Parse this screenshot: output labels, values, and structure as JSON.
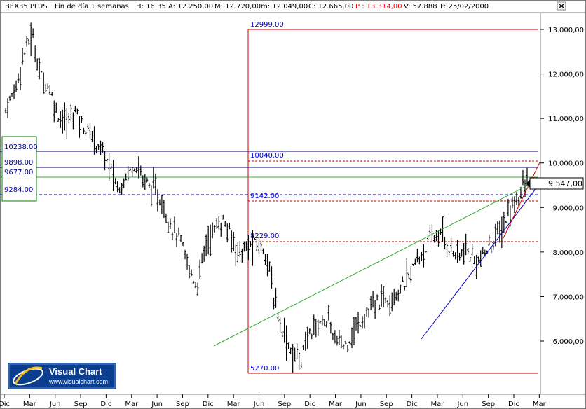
{
  "header": {
    "instrument": "IBEX35 PLUS",
    "period": "Fin de día 1 semanas",
    "time": "H: 16:35",
    "open": "A: 12.250,00",
    "high": "M: 12.720,00",
    "low": "m: 12.049,00",
    "close": "C: 12.665,00",
    "p": "P : 13.314,00",
    "volume": "V: 57.888",
    "date": "F: 25/02/2000",
    "colors": {
      "p_value": "#ff0000"
    }
  },
  "close_button_icon": "close-icon",
  "logo": {
    "name": "Visual Chart",
    "url": "www.visualchart.com"
  },
  "levels": {
    "left_box": [
      "10238.00",
      "9898.00",
      "9677.00",
      "9284.00"
    ],
    "fib_top": "12999.00",
    "fib_1": "10040.00",
    "fib_2": "9142.00",
    "fib_3": "8229.00",
    "fib_bottom": "5270.00"
  },
  "current_price": "9.547,00",
  "chart_data": {
    "type": "ohlc",
    "title": "IBEX35 PLUS",
    "y_ticks": [
      "13.000,00",
      "12.000,00",
      "11.000,00",
      "10.000,00",
      "9.000,00",
      "8.000,00",
      "7.000,00",
      "6.000,00"
    ],
    "y_tick_values": [
      13000,
      12000,
      11000,
      10000,
      9000,
      8000,
      7000,
      6000
    ],
    "ylim": [
      5000,
      13400
    ],
    "x_ticks": [
      "Dic",
      "Mar",
      "Jun",
      "Sep",
      "Dic",
      "Mar",
      "Jun",
      "Sep",
      "Dic",
      "Mar",
      "Jun",
      "Sep",
      "Dic",
      "Mar",
      "Jun",
      "Sep",
      "Dic",
      "Mar",
      "Jun",
      "Sep",
      "Dic",
      "Mar"
    ],
    "approx_closes": [
      11200,
      11600,
      12400,
      12900,
      12000,
      11700,
      11100,
      10900,
      11200,
      10800,
      10600,
      10300,
      9900,
      9400,
      9800,
      10000,
      9600,
      9400,
      9100,
      8600,
      8300,
      7700,
      7200,
      8200,
      8500,
      8700,
      8300,
      8000,
      8100,
      8200,
      8000,
      6800,
      6200,
      5700,
      5600,
      6200,
      6400,
      6500,
      6000,
      5900,
      6200,
      6500,
      6700,
      6900,
      7000,
      7100,
      7300,
      7700,
      8000,
      8300,
      8400,
      8100,
      7900,
      8000,
      7800,
      7900,
      8200,
      8500,
      8900,
      9300,
      9547
    ],
    "horizontal_levels": [
      {
        "value": 12999,
        "color": "#cc0000",
        "style": "solid"
      },
      {
        "value": 10238,
        "color": "#000080",
        "style": "solid"
      },
      {
        "value": 10040,
        "color": "#cc0000",
        "style": "dashed"
      },
      {
        "value": 9898,
        "color": "#000080",
        "style": "solid"
      },
      {
        "value": 9677,
        "color": "#33aa33",
        "style": "solid"
      },
      {
        "value": 9284,
        "color": "#0000cc",
        "style": "dashed"
      },
      {
        "value": 9142,
        "color": "#cc0000",
        "style": "dashed"
      },
      {
        "value": 8229,
        "color": "#cc0000",
        "style": "dashed"
      },
      {
        "value": 5270,
        "color": "#cc0000",
        "style": "solid"
      }
    ],
    "trend_lines": [
      {
        "color": "#33aa33",
        "from": [
          305,
          6000
        ],
        "to": [
          770,
          9600
        ]
      },
      {
        "color": "#0000cc",
        "from": [
          600,
          6050
        ],
        "to": [
          770,
          9550
        ]
      },
      {
        "color": "#cc0000",
        "from": [
          718,
          8350
        ],
        "to": [
          770,
          10000
        ]
      }
    ]
  }
}
